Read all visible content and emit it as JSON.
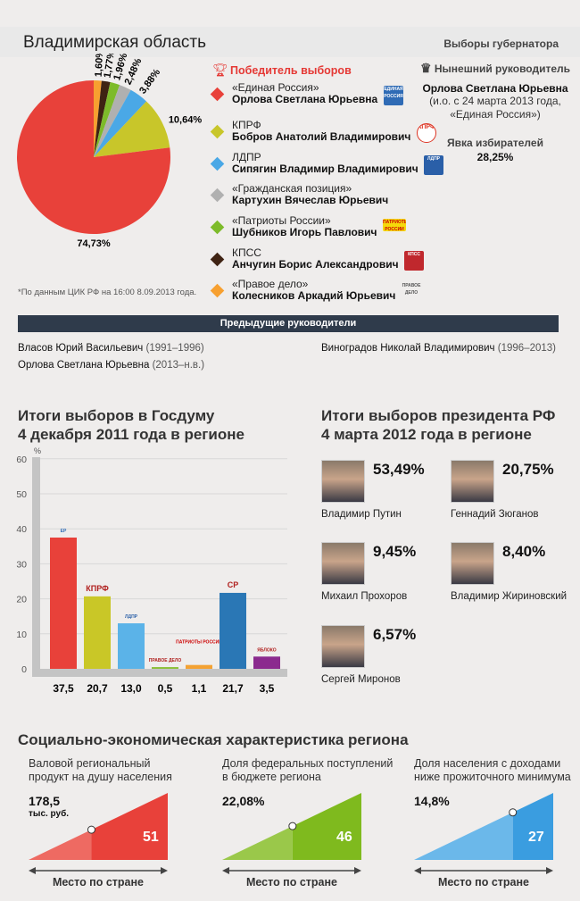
{
  "header": {
    "title": "Владимирская область",
    "subtitle": "Выборы губернатора"
  },
  "governor_election": {
    "winner_label": "Победитель выборов",
    "footnote": "*По данным ЦИК РФ на 16:00 8.09.2013 года.",
    "candidates": [
      {
        "party": "«Единая Россия»",
        "name": "Орлова Светлана Юрьевна",
        "pct": 74.73,
        "label": "74,73%",
        "color": "#e8413a",
        "logo": "ЕДИНАЯ РОССИЯ"
      },
      {
        "party": "КПРФ",
        "name": "Бобров Анатолий Владимирович",
        "pct": 10.64,
        "label": "10,64%",
        "color": "#c8c62a",
        "logo": "КПРФ"
      },
      {
        "party": "ЛДПР",
        "name": "Сипягин Владимир Владимирович",
        "pct": 3.88,
        "label": "3,88%",
        "color": "#4aa8e6",
        "logo": "ЛДПР"
      },
      {
        "party": "«Гражданская позиция»",
        "name": "Картухин Вячеслав Юрьевич",
        "pct": 2.48,
        "label": "2,48%",
        "color": "#b0b0b0",
        "logo": ""
      },
      {
        "party": "«Патриоты России»",
        "name": "Шубников Игорь Павлович",
        "pct": 1.96,
        "label": "1,96%",
        "color": "#7dbb2a",
        "logo": "ПАТРИОТЫ РОССИИ"
      },
      {
        "party": "КПСС",
        "name": "Анчугин Борис Александрович",
        "pct": 1.77,
        "label": "1,77%",
        "color": "#3f2313",
        "logo": "КПСС"
      },
      {
        "party": "«Правое дело»",
        "name": "Колесников Аркадий Юрьевич",
        "pct": 1.6,
        "label": "1,60%",
        "color": "#f7a030",
        "logo": "ПРАВОЕ ДЕЛО"
      }
    ]
  },
  "current_head": {
    "label": "Нынешний руководитель",
    "name": "Орлова Светлана Юрьевна",
    "note1": "(и.о. с 24 марта 2013 года,",
    "note2": "«Единая Россия»)",
    "turnout_label": "Явка избирателей",
    "turnout": "28,25%"
  },
  "previous": {
    "title": "Предыдущие руководители",
    "items": [
      {
        "name": "Власов Юрий Васильевич",
        "years": "(1991–1996)"
      },
      {
        "name": "Виноградов Николай Владимирович",
        "years": "(1996–2013)"
      },
      {
        "name": "Орлова Светлана Юрьевна",
        "years": "(2013–н.в.)"
      }
    ]
  },
  "duma": {
    "title1": "Итоги выборов в Госдуму",
    "title2": "4 декабря 2011 года в регионе"
  },
  "chart_data": {
    "type": "bar",
    "title": "Итоги выборов в Госдуму 4 декабря 2011 года в регионе",
    "ylabel": "%",
    "ylim": [
      0,
      60
    ],
    "yticks": [
      "0",
      "10",
      "20",
      "30",
      "40",
      "50",
      "60"
    ],
    "categories": [
      "Единая Россия",
      "КПРФ",
      "ЛДПР",
      "Правое дело",
      "Патриоты России",
      "Справедливая Россия",
      "Яблоко"
    ],
    "values": [
      37.5,
      20.7,
      13.0,
      0.5,
      1.1,
      21.7,
      3.5
    ],
    "labels": [
      "37,5",
      "20,7",
      "13,0",
      "0,5",
      "1,1",
      "21,7",
      "3,5"
    ],
    "colors": [
      "#e8413a",
      "#c9c727",
      "#5bb3e8",
      "#8dc03a",
      "#f4a233",
      "#2a77b5",
      "#8b2a8e"
    ],
    "logos": [
      "ЕР",
      "КПРФ",
      "ЛДПР",
      "ПРАВОЕ ДЕЛО",
      "ПАТРИОТЫ РОССИИ",
      "СР",
      "ЯБЛОКО"
    ],
    "grid": true
  },
  "president": {
    "title1": "Итоги выборов президента РФ",
    "title2": "4 марта 2012 года в регионе",
    "candidates": [
      {
        "name": "Владимир Путин",
        "pct": "53,49%"
      },
      {
        "name": "Геннадий Зюганов",
        "pct": "20,75%"
      },
      {
        "name": "Михаил Прохоров",
        "pct": "9,45%"
      },
      {
        "name": "Владимир Жириновский",
        "pct": "8,40%"
      },
      {
        "name": "Сергей Миронов",
        "pct": "6,57%"
      }
    ]
  },
  "socio": {
    "title": "Социально-экономическая характеристика региона",
    "place_label": "Место по стране",
    "panels": [
      {
        "line1": "Валовой региональный",
        "line2": "продукт на душу населения",
        "value": "178,5",
        "unit": "тыс. руб.",
        "rank": 51,
        "rank_label": "51",
        "color_light": "#ee6a62",
        "color": "#e8413a"
      },
      {
        "line1": "Доля федеральных поступлений",
        "line2": "в бюджете региона",
        "value": "22,08%",
        "unit": "",
        "rank": 46,
        "rank_label": "46",
        "color_light": "#9ac84a",
        "color": "#7fba1e"
      },
      {
        "line1": "Доля населения с доходами",
        "line2": "ниже прожиточного минимума",
        "value": "14,8%",
        "unit": "",
        "rank": 27,
        "rank_label": "27",
        "color_light": "#6bb8ea",
        "color": "#3a9de0"
      }
    ]
  }
}
